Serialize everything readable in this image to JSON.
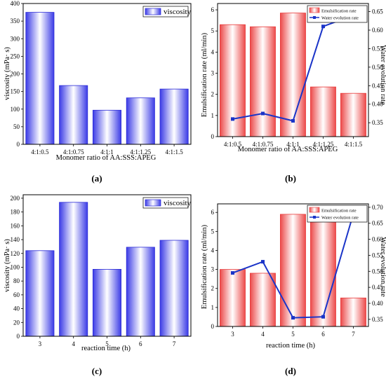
{
  "chart_data": [
    {
      "panel_label": "(a)",
      "type": "bar",
      "categories": [
        "4:1:0.5",
        "4:1:0.75",
        "4:1:1",
        "4:1:1.25",
        "4:1:1.5"
      ],
      "series": [
        {
          "name": "viscosity",
          "values": [
            375,
            167,
            97,
            132,
            157
          ],
          "color": "#2b2bd6"
        }
      ],
      "xlabel": "Monomer ratio  of  AA:SSS:APEG",
      "ylabel": "viscosity (mPa· s)",
      "ylim": [
        0,
        400
      ],
      "yticks": [
        0,
        50,
        100,
        150,
        200,
        250,
        300,
        350,
        400
      ],
      "legend": "top-right"
    },
    {
      "panel_label": "(b)",
      "type": "bar",
      "categories": [
        "4:1:0.5",
        "4:1:0.75",
        "4:1:1",
        "4:1:1.25",
        "4:1:1.5"
      ],
      "series": [
        {
          "name": "Emulsification rate",
          "type": "bar",
          "axis": "left",
          "values": [
            5.3,
            5.2,
            5.85,
            2.35,
            2.05
          ],
          "color": "#e83a3a"
        },
        {
          "name": "Water evolution rate",
          "type": "line",
          "axis": "right",
          "values": [
            0.36,
            0.375,
            0.355,
            0.61,
            0.64
          ],
          "color": "#1a34c8"
        }
      ],
      "xlabel": "Monomer ratio  of  AA:SSS:APEG",
      "ylabel": "Emulsification rate (ml/min)",
      "y2label": "Water evolution rate",
      "ylim": [
        0,
        6.3
      ],
      "yticks": [
        0,
        1,
        2,
        3,
        4,
        5,
        6
      ],
      "y2lim": [
        0.3125,
        0.6719
      ],
      "y2ticks": [
        0.35,
        0.4,
        0.45,
        0.5,
        0.55,
        0.6,
        0.65
      ],
      "legend": "top-right"
    },
    {
      "panel_label": "(c)",
      "type": "bar",
      "categories": [
        "3",
        "4",
        "5",
        "6",
        "7"
      ],
      "series": [
        {
          "name": "viscosity",
          "values": [
            124,
            194,
            97,
            129,
            139
          ],
          "color": "#2b2bd6"
        }
      ],
      "xlabel": "reaction  time (h)",
      "ylabel": "viscosity (mPa· s)",
      "ylim": [
        0,
        205
      ],
      "yticks": [
        0,
        20,
        40,
        60,
        80,
        100,
        120,
        140,
        160,
        180,
        200
      ],
      "legend": "top-right"
    },
    {
      "panel_label": "(d)",
      "type": "bar",
      "categories": [
        "3",
        "4",
        "5",
        "6",
        "7"
      ],
      "series": [
        {
          "name": "Emulsification rate",
          "type": "bar",
          "axis": "left",
          "values": [
            3.0,
            2.8,
            5.9,
            5.65,
            1.5
          ],
          "color": "#e83a3a"
        },
        {
          "name": "Water evolution rate",
          "type": "line",
          "axis": "right",
          "values": [
            0.495,
            0.53,
            0.355,
            0.358,
            0.68
          ],
          "color": "#1a34c8"
        }
      ],
      "xlabel": "reaction  time (h)",
      "ylabel": "Emulsification rate (ml/min)",
      "y2label": "Water evolution rate",
      "ylim": [
        0,
        6.45
      ],
      "yticks": [
        0,
        1,
        2,
        3,
        4,
        5,
        6
      ],
      "y2lim": [
        0.3278,
        0.7107
      ],
      "y2ticks": [
        0.35,
        0.4,
        0.45,
        0.5,
        0.55,
        0.6,
        0.65,
        0.7
      ],
      "legend": "top-right"
    }
  ]
}
